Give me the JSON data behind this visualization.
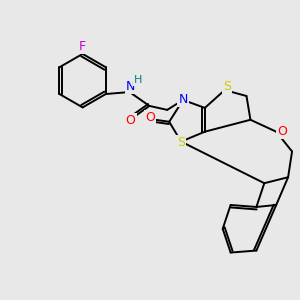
{
  "background_color": "#e8e8e8",
  "bond_color": "#000000",
  "atom_colors": {
    "F": "#cc00cc",
    "N": "#0000ff",
    "O": "#ff0000",
    "S": "#cccc00",
    "H": "#008080",
    "C": "#000000"
  },
  "figsize": [
    3.0,
    3.0
  ],
  "dpi": 100
}
